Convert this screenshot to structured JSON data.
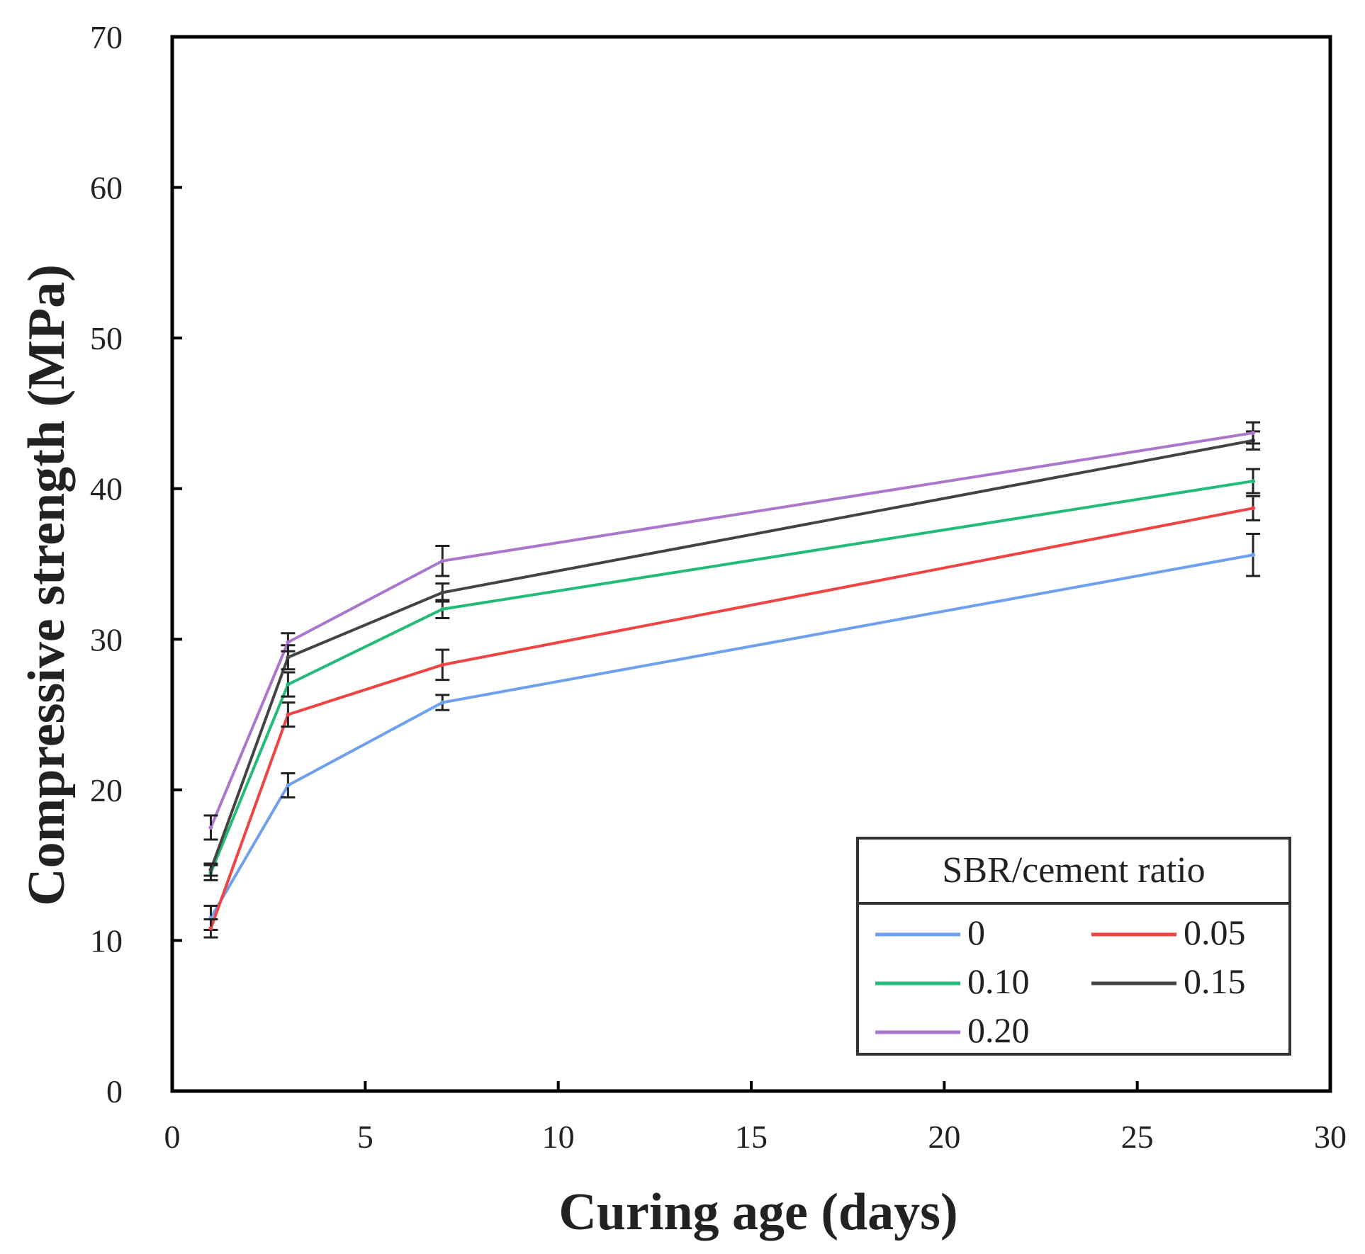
{
  "chart_data": {
    "type": "line",
    "title": "",
    "xlabel": "Curing age (days)",
    "ylabel": "Compressive strength (MPa)",
    "xlim": [
      0,
      30
    ],
    "ylim": [
      0,
      70
    ],
    "xticks": [
      0,
      5,
      10,
      15,
      20,
      25,
      30
    ],
    "yticks": [
      0,
      10,
      20,
      30,
      40,
      50,
      60,
      70
    ],
    "grid": false,
    "x": [
      1,
      3,
      7,
      28
    ],
    "legend": {
      "title": "SBR/cement ratio",
      "placement": "bottom-right"
    },
    "series": [
      {
        "name": "0",
        "color": "#6fa0ee",
        "values": [
          11.5,
          20.3,
          25.8,
          35.6
        ],
        "errors": [
          0.8,
          0.8,
          0.5,
          1.4
        ]
      },
      {
        "name": "0.05",
        "color": "#ee4444",
        "values": [
          10.8,
          25.0,
          28.3,
          38.7
        ],
        "errors": [
          0.6,
          0.8,
          1.0,
          0.8
        ]
      },
      {
        "name": "0.10",
        "color": "#22bb77",
        "values": [
          14.5,
          27.0,
          32.0,
          40.5
        ],
        "errors": [
          0.5,
          0.8,
          0.6,
          0.8
        ]
      },
      {
        "name": "0.15",
        "color": "#444444",
        "values": [
          14.7,
          28.8,
          33.1,
          43.2
        ],
        "errors": [
          0.4,
          0.8,
          0.6,
          0.6
        ]
      },
      {
        "name": "0.20",
        "color": "#aa77cc",
        "values": [
          17.5,
          29.8,
          35.2,
          43.7
        ],
        "errors": [
          0.8,
          0.6,
          1.0,
          0.7
        ]
      }
    ]
  }
}
